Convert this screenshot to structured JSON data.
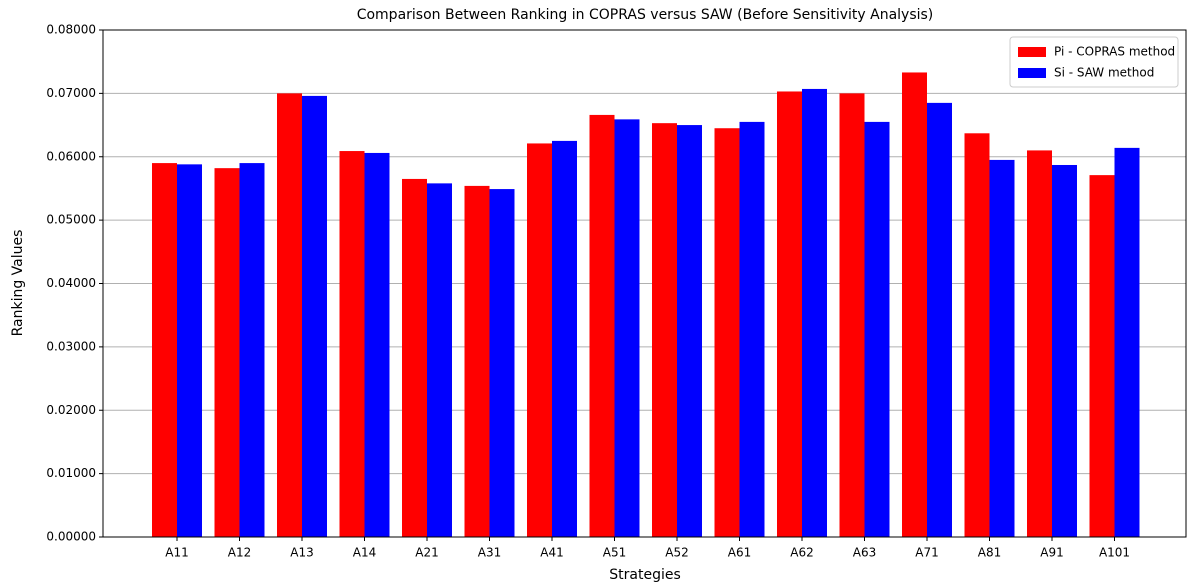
{
  "chart_data": {
    "type": "bar",
    "title": "Comparison Between Ranking in COPRAS versus SAW (Before Sensitivity Analysis)",
    "x_label": "Strategies",
    "y_label": "Ranking Values",
    "categories": [
      "A11",
      "A12",
      "A13",
      "A14",
      "A21",
      "A31",
      "A41",
      "A51",
      "A52",
      "A61",
      "A62",
      "A63",
      "A71",
      "A81",
      "A91",
      "A101"
    ],
    "series": [
      {
        "name": "Pi - COPRAS method",
        "color": "#ff0000",
        "values": [
          0.059,
          0.0582,
          0.07,
          0.0609,
          0.0565,
          0.0554,
          0.0621,
          0.0666,
          0.0653,
          0.0645,
          0.0703,
          0.07,
          0.0733,
          0.0637,
          0.061,
          0.0571
        ]
      },
      {
        "name": "Si - SAW method",
        "color": "#0000ff",
        "values": [
          0.0588,
          0.059,
          0.0696,
          0.0606,
          0.0558,
          0.0549,
          0.0625,
          0.0659,
          0.065,
          0.0655,
          0.0707,
          0.0655,
          0.0685,
          0.0595,
          0.0587,
          0.0614
        ]
      }
    ],
    "ylim": [
      0,
      0.08
    ],
    "yticks": [
      {
        "value": 0,
        "label": "0.00000"
      },
      {
        "value": 0.01,
        "label": "0.01000"
      },
      {
        "value": 0.02,
        "label": "0.02000"
      },
      {
        "value": 0.03,
        "label": "0.03000"
      },
      {
        "value": 0.04,
        "label": "0.04000"
      },
      {
        "value": 0.05,
        "label": "0.05000"
      },
      {
        "value": 0.06,
        "label": "0.06000"
      },
      {
        "value": 0.07,
        "label": "0.07000"
      },
      {
        "value": 0.08,
        "label": "0.08000"
      }
    ],
    "grid": true,
    "legend": "upper-right"
  }
}
